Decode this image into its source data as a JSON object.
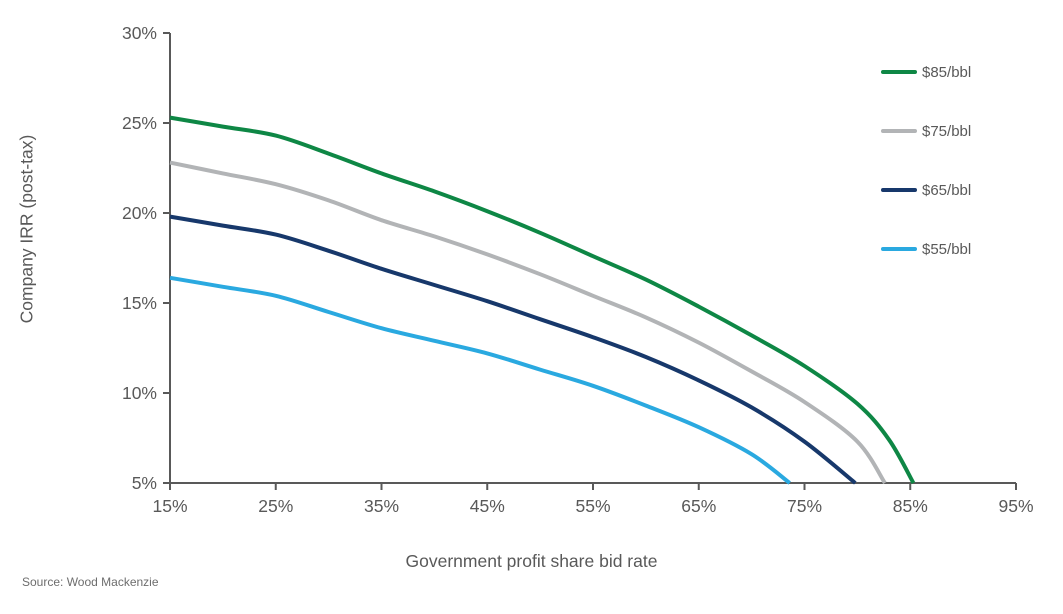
{
  "chart_data": {
    "type": "line",
    "title": "",
    "xlabel": "Government profit share bid rate",
    "ylabel": "Company IRR (post-tax)",
    "xlim": [
      15,
      95
    ],
    "ylim": [
      5,
      30
    ],
    "x_ticks": [
      15,
      25,
      35,
      45,
      55,
      65,
      75,
      85,
      95
    ],
    "y_ticks": [
      30,
      25,
      20,
      15,
      10,
      5
    ],
    "tick_suffix": "%",
    "grid": false,
    "legend_position": "top-right",
    "axis_color": "#595959",
    "tick_label_color": "#595959",
    "series": [
      {
        "name": "$85/bbl",
        "color": "#0e8745",
        "points": [
          [
            15,
            25.3
          ],
          [
            20,
            24.8
          ],
          [
            25,
            24.3
          ],
          [
            30,
            23.3
          ],
          [
            35,
            22.2
          ],
          [
            40,
            21.2
          ],
          [
            45,
            20.1
          ],
          [
            50,
            18.9
          ],
          [
            55,
            17.6
          ],
          [
            60,
            16.3
          ],
          [
            65,
            14.8
          ],
          [
            70,
            13.2
          ],
          [
            75,
            11.5
          ],
          [
            80,
            9.4
          ],
          [
            83,
            7.4
          ],
          [
            85.3,
            5.0
          ]
        ]
      },
      {
        "name": "$75/bbl",
        "color": "#b2b4b6",
        "points": [
          [
            15,
            22.8
          ],
          [
            20,
            22.2
          ],
          [
            25,
            21.6
          ],
          [
            30,
            20.7
          ],
          [
            35,
            19.6
          ],
          [
            40,
            18.7
          ],
          [
            45,
            17.7
          ],
          [
            50,
            16.6
          ],
          [
            55,
            15.4
          ],
          [
            60,
            14.2
          ],
          [
            65,
            12.8
          ],
          [
            70,
            11.2
          ],
          [
            75,
            9.5
          ],
          [
            80,
            7.3
          ],
          [
            82.6,
            5.0
          ]
        ]
      },
      {
        "name": "$65/bbl",
        "color": "#17386b",
        "points": [
          [
            15,
            19.8
          ],
          [
            20,
            19.3
          ],
          [
            25,
            18.8
          ],
          [
            30,
            17.9
          ],
          [
            35,
            16.9
          ],
          [
            40,
            16.0
          ],
          [
            45,
            15.1
          ],
          [
            50,
            14.1
          ],
          [
            55,
            13.1
          ],
          [
            60,
            12.0
          ],
          [
            65,
            10.7
          ],
          [
            70,
            9.2
          ],
          [
            75,
            7.3
          ],
          [
            79.8,
            5.0
          ]
        ]
      },
      {
        "name": "$55/bbl",
        "color": "#2aa9e0",
        "points": [
          [
            15,
            16.4
          ],
          [
            20,
            15.9
          ],
          [
            25,
            15.4
          ],
          [
            30,
            14.5
          ],
          [
            35,
            13.6
          ],
          [
            40,
            12.9
          ],
          [
            45,
            12.2
          ],
          [
            50,
            11.3
          ],
          [
            55,
            10.4
          ],
          [
            60,
            9.3
          ],
          [
            65,
            8.1
          ],
          [
            70,
            6.6
          ],
          [
            73.6,
            5.0
          ]
        ]
      }
    ]
  },
  "footer": {
    "source": "Source: Wood Mackenzie"
  }
}
